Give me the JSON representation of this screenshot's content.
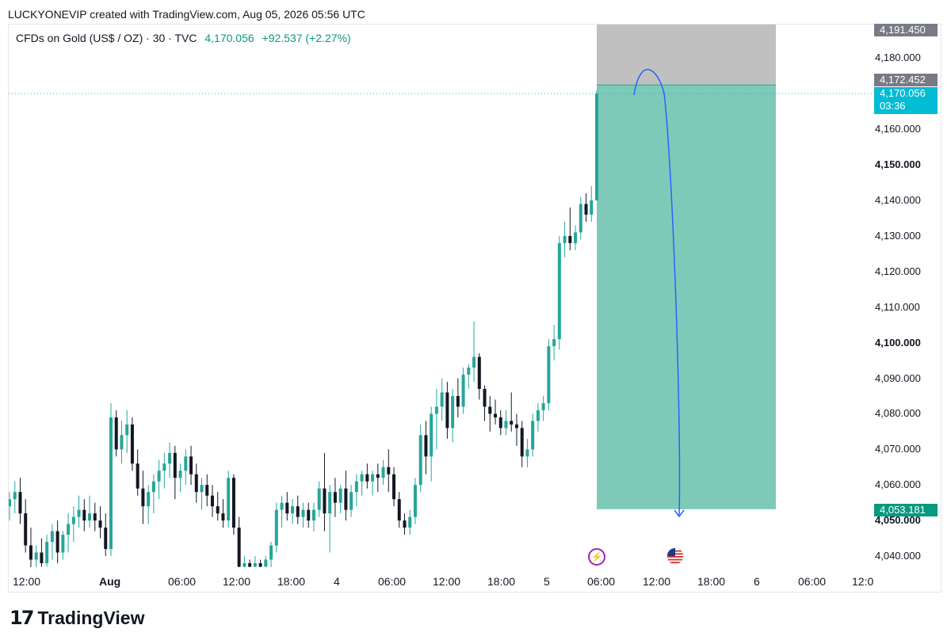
{
  "header": {
    "credit": "LUCKYONEVIP created with TradingView.com, Aug 05, 2026 05:56 UTC"
  },
  "symbol": {
    "name": "CFDs on Gold (US$ / OZ) · 30 · TVC",
    "last": "4,170.056",
    "change": "+92.537 (+2.27%)"
  },
  "price_axis": {
    "labels": [
      {
        "text": "4,180.000",
        "bold": false
      },
      {
        "text": "4,160.000",
        "bold": false
      },
      {
        "text": "4,150.000",
        "bold": true
      },
      {
        "text": "4,140.000",
        "bold": false
      },
      {
        "text": "4,130.000",
        "bold": false
      },
      {
        "text": "4,120.000",
        "bold": false
      },
      {
        "text": "4,110.000",
        "bold": false
      },
      {
        "text": "4,100.000",
        "bold": true
      },
      {
        "text": "4,090.000",
        "bold": false
      },
      {
        "text": "4,080.000",
        "bold": false
      },
      {
        "text": "4,070.000",
        "bold": false
      },
      {
        "text": "4,060.000",
        "bold": false
      },
      {
        "text": "4,050.000",
        "bold": true
      },
      {
        "text": "4,040.000",
        "bold": false
      }
    ],
    "tags": {
      "top": "4,191.450",
      "entry": "4,172.452",
      "last": "4,170.056",
      "countdown": "03:36",
      "target": "4,053.181"
    }
  },
  "time_axis": {
    "labels": [
      {
        "text": "12:00",
        "bold": false
      },
      {
        "text": "Aug",
        "bold": true
      },
      {
        "text": "06:00",
        "bold": false
      },
      {
        "text": "12:00",
        "bold": false
      },
      {
        "text": "18:00",
        "bold": false
      },
      {
        "text": "4",
        "bold": false
      },
      {
        "text": "06:00",
        "bold": false
      },
      {
        "text": "12:00",
        "bold": false
      },
      {
        "text": "18:00",
        "bold": false
      },
      {
        "text": "5",
        "bold": false
      },
      {
        "text": "06:00",
        "bold": false
      },
      {
        "text": "12:00",
        "bold": false
      },
      {
        "text": "18:00",
        "bold": false
      },
      {
        "text": "6",
        "bold": false
      },
      {
        "text": "06:00",
        "bold": false
      },
      {
        "text": "12:0",
        "bold": false
      }
    ]
  },
  "events": {
    "bolt_icon": "lightning-icon",
    "flag_icon": "us-flag-icon"
  },
  "colors": {
    "up": "#26a69a",
    "down": "#131722",
    "profit_zone": "#7fc9b9",
    "stop_zone": "#c0c0c0",
    "arrow": "#2962ff",
    "last_price": "#00bcd4"
  },
  "chart_data": {
    "type": "candlestick",
    "interval": "30",
    "y_range": [
      4036,
      4192
    ],
    "candles": [
      {
        "o": 4054,
        "h": 4058,
        "l": 4050,
        "c": 4056
      },
      {
        "o": 4056,
        "h": 4061,
        "l": 4052,
        "c": 4058
      },
      {
        "o": 4058,
        "h": 4062,
        "l": 4049,
        "c": 4052
      },
      {
        "o": 4052,
        "h": 4056,
        "l": 4041,
        "c": 4043
      },
      {
        "o": 4043,
        "h": 4048,
        "l": 4036,
        "c": 4039
      },
      {
        "o": 4039,
        "h": 4043,
        "l": 4036,
        "c": 4041
      },
      {
        "o": 4041,
        "h": 4045,
        "l": 4037,
        "c": 4038
      },
      {
        "o": 4038,
        "h": 4046,
        "l": 4037,
        "c": 4044
      },
      {
        "o": 4044,
        "h": 4049,
        "l": 4039,
        "c": 4047
      },
      {
        "o": 4047,
        "h": 4050,
        "l": 4038,
        "c": 4041
      },
      {
        "o": 4041,
        "h": 4047,
        "l": 4039,
        "c": 4046
      },
      {
        "o": 4046,
        "h": 4052,
        "l": 4041,
        "c": 4049
      },
      {
        "o": 4049,
        "h": 4054,
        "l": 4044,
        "c": 4051
      },
      {
        "o": 4051,
        "h": 4057,
        "l": 4048,
        "c": 4053
      },
      {
        "o": 4053,
        "h": 4056,
        "l": 4047,
        "c": 4050
      },
      {
        "o": 4050,
        "h": 4057,
        "l": 4048,
        "c": 4052
      },
      {
        "o": 4052,
        "h": 4055,
        "l": 4047,
        "c": 4050
      },
      {
        "o": 4050,
        "h": 4054,
        "l": 4045,
        "c": 4048
      },
      {
        "o": 4048,
        "h": 4052,
        "l": 4040,
        "c": 4042
      },
      {
        "o": 4042,
        "h": 4083,
        "l": 4040,
        "c": 4079
      },
      {
        "o": 4079,
        "h": 4081,
        "l": 4068,
        "c": 4070
      },
      {
        "o": 4070,
        "h": 4078,
        "l": 4066,
        "c": 4074
      },
      {
        "o": 4074,
        "h": 4081,
        "l": 4069,
        "c": 4077
      },
      {
        "o": 4077,
        "h": 4079,
        "l": 4064,
        "c": 4066
      },
      {
        "o": 4066,
        "h": 4070,
        "l": 4057,
        "c": 4059
      },
      {
        "o": 4059,
        "h": 4064,
        "l": 4049,
        "c": 4054
      },
      {
        "o": 4054,
        "h": 4060,
        "l": 4049,
        "c": 4058
      },
      {
        "o": 4058,
        "h": 4063,
        "l": 4052,
        "c": 4061
      },
      {
        "o": 4061,
        "h": 4067,
        "l": 4056,
        "c": 4064
      },
      {
        "o": 4064,
        "h": 4069,
        "l": 4059,
        "c": 4066
      },
      {
        "o": 4066,
        "h": 4072,
        "l": 4062,
        "c": 4069
      },
      {
        "o": 4069,
        "h": 4071,
        "l": 4056,
        "c": 4062
      },
      {
        "o": 4062,
        "h": 4066,
        "l": 4058,
        "c": 4064
      },
      {
        "o": 4064,
        "h": 4070,
        "l": 4060,
        "c": 4068
      },
      {
        "o": 4068,
        "h": 4071,
        "l": 4060,
        "c": 4063
      },
      {
        "o": 4063,
        "h": 4066,
        "l": 4055,
        "c": 4058
      },
      {
        "o": 4058,
        "h": 4062,
        "l": 4053,
        "c": 4060
      },
      {
        "o": 4060,
        "h": 4063,
        "l": 4054,
        "c": 4057
      },
      {
        "o": 4057,
        "h": 4060,
        "l": 4051,
        "c": 4054
      },
      {
        "o": 4054,
        "h": 4058,
        "l": 4050,
        "c": 4052
      },
      {
        "o": 4052,
        "h": 4056,
        "l": 4048,
        "c": 4050
      },
      {
        "o": 4050,
        "h": 4064,
        "l": 4048,
        "c": 4062
      },
      {
        "o": 4062,
        "h": 4063,
        "l": 4046,
        "c": 4048
      },
      {
        "o": 4048,
        "h": 4051,
        "l": 4036,
        "c": 4037
      },
      {
        "o": 4037,
        "h": 4040,
        "l": 4036,
        "c": 4038
      },
      {
        "o": 4038,
        "h": 4039,
        "l": 4036,
        "c": 4037
      },
      {
        "o": 4037,
        "h": 4040,
        "l": 4036,
        "c": 4038
      },
      {
        "o": 4038,
        "h": 4039,
        "l": 4036,
        "c": 4037
      },
      {
        "o": 4037,
        "h": 4040,
        "l": 4036,
        "c": 4039
      },
      {
        "o": 4039,
        "h": 4044,
        "l": 4036,
        "c": 4043
      },
      {
        "o": 4043,
        "h": 4055,
        "l": 4041,
        "c": 4053
      },
      {
        "o": 4053,
        "h": 4057,
        "l": 4048,
        "c": 4055
      },
      {
        "o": 4055,
        "h": 4058,
        "l": 4050,
        "c": 4052
      },
      {
        "o": 4052,
        "h": 4056,
        "l": 4049,
        "c": 4054
      },
      {
        "o": 4054,
        "h": 4057,
        "l": 4049,
        "c": 4051
      },
      {
        "o": 4051,
        "h": 4055,
        "l": 4048,
        "c": 4053
      },
      {
        "o": 4053,
        "h": 4055,
        "l": 4048,
        "c": 4050
      },
      {
        "o": 4050,
        "h": 4055,
        "l": 4047,
        "c": 4053
      },
      {
        "o": 4053,
        "h": 4061,
        "l": 4051,
        "c": 4059
      },
      {
        "o": 4059,
        "h": 4069,
        "l": 4047,
        "c": 4052
      },
      {
        "o": 4052,
        "h": 4060,
        "l": 4041,
        "c": 4058
      },
      {
        "o": 4058,
        "h": 4062,
        "l": 4051,
        "c": 4055
      },
      {
        "o": 4055,
        "h": 4060,
        "l": 4052,
        "c": 4059
      },
      {
        "o": 4059,
        "h": 4064,
        "l": 4050,
        "c": 4053
      },
      {
        "o": 4053,
        "h": 4060,
        "l": 4051,
        "c": 4058
      },
      {
        "o": 4058,
        "h": 4063,
        "l": 4054,
        "c": 4061
      },
      {
        "o": 4061,
        "h": 4064,
        "l": 4057,
        "c": 4063
      },
      {
        "o": 4063,
        "h": 4066,
        "l": 4059,
        "c": 4061
      },
      {
        "o": 4061,
        "h": 4064,
        "l": 4057,
        "c": 4063
      },
      {
        "o": 4063,
        "h": 4066,
        "l": 4058,
        "c": 4062
      },
      {
        "o": 4062,
        "h": 4067,
        "l": 4060,
        "c": 4065
      },
      {
        "o": 4065,
        "h": 4070,
        "l": 4058,
        "c": 4063
      },
      {
        "o": 4063,
        "h": 4065,
        "l": 4054,
        "c": 4056
      },
      {
        "o": 4056,
        "h": 4058,
        "l": 4048,
        "c": 4050
      },
      {
        "o": 4050,
        "h": 4052,
        "l": 4046,
        "c": 4048
      },
      {
        "o": 4048,
        "h": 4053,
        "l": 4046,
        "c": 4051
      },
      {
        "o": 4051,
        "h": 4062,
        "l": 4049,
        "c": 4060
      },
      {
        "o": 4060,
        "h": 4077,
        "l": 4058,
        "c": 4074
      },
      {
        "o": 4074,
        "h": 4078,
        "l": 4063,
        "c": 4068
      },
      {
        "o": 4068,
        "h": 4082,
        "l": 4061,
        "c": 4080
      },
      {
        "o": 4080,
        "h": 4087,
        "l": 4070,
        "c": 4082
      },
      {
        "o": 4082,
        "h": 4090,
        "l": 4078,
        "c": 4086
      },
      {
        "o": 4086,
        "h": 4089,
        "l": 4073,
        "c": 4076
      },
      {
        "o": 4076,
        "h": 4087,
        "l": 4072,
        "c": 4085
      },
      {
        "o": 4085,
        "h": 4090,
        "l": 4079,
        "c": 4082
      },
      {
        "o": 4082,
        "h": 4093,
        "l": 4080,
        "c": 4091
      },
      {
        "o": 4091,
        "h": 4094,
        "l": 4087,
        "c": 4093
      },
      {
        "o": 4093,
        "h": 4106,
        "l": 4089,
        "c": 4096
      },
      {
        "o": 4096,
        "h": 4097,
        "l": 4084,
        "c": 4087
      },
      {
        "o": 4087,
        "h": 4088,
        "l": 4078,
        "c": 4082
      },
      {
        "o": 4082,
        "h": 4085,
        "l": 4075,
        "c": 4080
      },
      {
        "o": 4080,
        "h": 4084,
        "l": 4077,
        "c": 4079
      },
      {
        "o": 4079,
        "h": 4081,
        "l": 4074,
        "c": 4076
      },
      {
        "o": 4076,
        "h": 4081,
        "l": 4074,
        "c": 4078
      },
      {
        "o": 4078,
        "h": 4086,
        "l": 4075,
        "c": 4077
      },
      {
        "o": 4077,
        "h": 4080,
        "l": 4071,
        "c": 4076
      },
      {
        "o": 4076,
        "h": 4078,
        "l": 4065,
        "c": 4068
      },
      {
        "o": 4068,
        "h": 4073,
        "l": 4065,
        "c": 4070
      },
      {
        "o": 4070,
        "h": 4080,
        "l": 4068,
        "c": 4078
      },
      {
        "o": 4078,
        "h": 4083,
        "l": 4075,
        "c": 4081
      },
      {
        "o": 4081,
        "h": 4085,
        "l": 4078,
        "c": 4083
      },
      {
        "o": 4083,
        "h": 4101,
        "l": 4081,
        "c": 4099
      },
      {
        "o": 4099,
        "h": 4105,
        "l": 4095,
        "c": 4101
      },
      {
        "o": 4101,
        "h": 4130,
        "l": 4098,
        "c": 4128
      },
      {
        "o": 4128,
        "h": 4134,
        "l": 4124,
        "c": 4130
      },
      {
        "o": 4130,
        "h": 4138,
        "l": 4126,
        "c": 4128
      },
      {
        "o": 4128,
        "h": 4133,
        "l": 4126,
        "c": 4131
      },
      {
        "o": 4131,
        "h": 4141,
        "l": 4129,
        "c": 4139
      },
      {
        "o": 4139,
        "h": 4142,
        "l": 4134,
        "c": 4136
      },
      {
        "o": 4136,
        "h": 4144,
        "l": 4134,
        "c": 4140
      },
      {
        "o": 4140,
        "h": 4171,
        "l": 4140,
        "c": 4170
      }
    ],
    "last_price": 4170.056,
    "position": {
      "type": "short",
      "stop_level": 4191.45,
      "entry_level": 4172.452,
      "target_level": 4053.181
    }
  }
}
